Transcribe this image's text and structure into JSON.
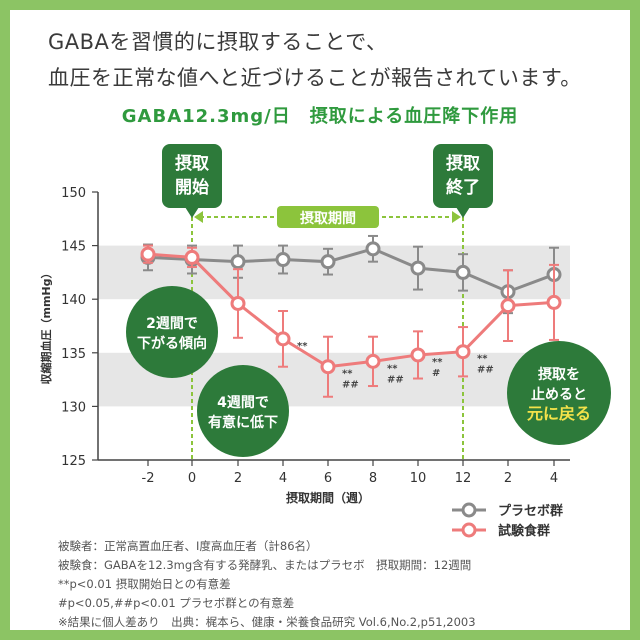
{
  "intro": {
    "line1": "GABAを習慣的に摂取することで、",
    "line2": "血圧を正常な値へと近づけることが報告されています。"
  },
  "callouts": {
    "start": [
      "摂取",
      "開始"
    ],
    "end": [
      "摂取",
      "終了"
    ],
    "period": "摂取期間",
    "week2": [
      "2週間で",
      "下がる傾向"
    ],
    "week4": [
      "4週間で",
      "有意に低下"
    ],
    "stop": [
      "摂取を",
      "止めると",
      "元に戻る"
    ]
  },
  "notes": [
    "被験者：正常高置血圧者、I度高血圧者（計86名）",
    "被験食：GABAを12.3mg含有する発酵乳、またはプラセボ　摂取期間：12週間",
    "**p<0.01 摂取開始日との有意差",
    "#p<0.05,##p<0.01 プラセボ群との有意差",
    "※結果に個人差あり　出典：梶本ら、健康・栄養食品研究 Vol.6,No.2,p51,2003"
  ],
  "colors": {
    "background": "#8cc464",
    "title": "#2f9a3e",
    "callout": "#2d7a3a",
    "placebo": "#8a8a8a",
    "test": "#ee7b7b",
    "dashed_line": "#8cc43c",
    "band": "#e6e6e6"
  },
  "chart_data": {
    "type": "line",
    "title": "GABA12.3mg/日　摂取による血圧降下作用",
    "xlabel": "摂取期間（週）",
    "ylabel": "収縮期血圧（mmHg）",
    "categories": [
      "-2",
      "0",
      "2",
      "4",
      "6",
      "8",
      "10",
      "12",
      "2",
      "4"
    ],
    "ylim": [
      125,
      150
    ],
    "yticks": [
      125,
      130,
      135,
      140,
      145,
      150
    ],
    "bands": [
      [
        140,
        145
      ],
      [
        130,
        135
      ]
    ],
    "legend_position": "bottom-right",
    "series": [
      {
        "name": "プラセボ群",
        "color": "#8a8a8a",
        "values": [
          143.9,
          143.7,
          143.5,
          143.7,
          143.5,
          144.7,
          142.9,
          142.5,
          140.7,
          142.3
        ],
        "errors": [
          1.2,
          1.3,
          1.5,
          1.3,
          1.2,
          1.2,
          2.0,
          1.7,
          2.0,
          2.5
        ]
      },
      {
        "name": "試験食群",
        "color": "#ee7b7b",
        "values": [
          144.2,
          143.9,
          139.6,
          136.3,
          133.7,
          134.2,
          134.8,
          135.1,
          139.4,
          139.7
        ],
        "errors": [
          0.8,
          0.9,
          3.2,
          2.6,
          2.8,
          2.3,
          2.2,
          2.3,
          3.3,
          3.5
        ],
        "annotations": [
          "",
          "",
          "",
          "**",
          "**\n##",
          "**\n##",
          "**\n#",
          "**\n##",
          "",
          ""
        ]
      }
    ]
  }
}
